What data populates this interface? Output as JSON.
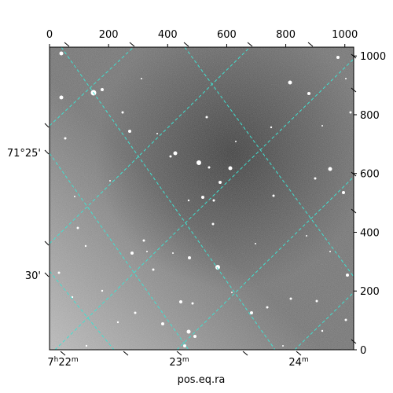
{
  "chart_data": {
    "type": "image-with-wcs-grid",
    "xlabel": "pos.eq.ra",
    "pixel_axes": {
      "top_ticks": [
        "0",
        "200",
        "400",
        "600",
        "800",
        "1000"
      ],
      "top_values": [
        0,
        200,
        400,
        600,
        800,
        1000
      ],
      "right_ticks": [
        "0",
        "200",
        "400",
        "600",
        "800",
        "1000"
      ],
      "right_values": [
        0,
        200,
        400,
        600,
        800,
        1000
      ],
      "xlim": [
        0,
        1030
      ],
      "ylim": [
        0,
        1030
      ]
    },
    "world_axes": {
      "ra_ticks": [
        {
          "main": "7",
          "sup1": "h",
          "mid": "22",
          "sup2": "m"
        },
        {
          "main": "23",
          "sup2": "m"
        },
        {
          "main": "24",
          "sup2": "m"
        }
      ],
      "dec_ticks": [
        "71°25'",
        "30'"
      ]
    },
    "grid": {
      "visible": true,
      "color": "#40e0d0",
      "style": "dashed"
    }
  }
}
